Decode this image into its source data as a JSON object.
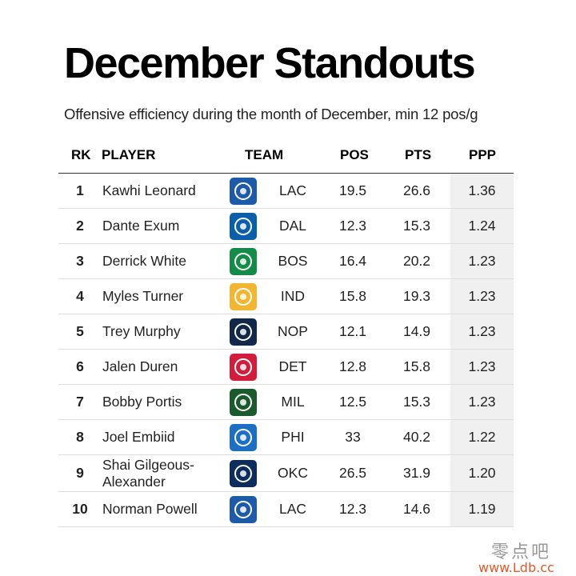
{
  "title": "December Standouts",
  "subtitle": "Offensive efficiency during the month of December, min 12 pos/g",
  "columns": {
    "rk": "RK",
    "player": "PLAYER",
    "team": "TEAM",
    "pos": "POS",
    "pts": "PTS",
    "ppp": "PPP"
  },
  "rows": [
    {
      "rk": "1",
      "player": "Kawhi Leonard",
      "team": "LAC",
      "pos": "19.5",
      "pts": "26.6",
      "ppp": "1.36",
      "logo_icon": "clippers-logo-icon",
      "logo_color": "#1d5aa8"
    },
    {
      "rk": "2",
      "player": "Dante Exum",
      "team": "DAL",
      "pos": "12.3",
      "pts": "15.3",
      "ppp": "1.24",
      "logo_icon": "mavericks-logo-icon",
      "logo_color": "#0b5ea8"
    },
    {
      "rk": "3",
      "player": "Derrick White",
      "team": "BOS",
      "pos": "16.4",
      "pts": "20.2",
      "ppp": "1.23",
      "logo_icon": "celtics-logo-icon",
      "logo_color": "#148b46"
    },
    {
      "rk": "4",
      "player": "Myles Turner",
      "team": "IND",
      "pos": "15.8",
      "pts": "19.3",
      "ppp": "1.23",
      "logo_icon": "pacers-logo-icon",
      "logo_color": "#f2b632"
    },
    {
      "rk": "5",
      "player": "Trey Murphy",
      "team": "NOP",
      "pos": "12.1",
      "pts": "14.9",
      "ppp": "1.23",
      "logo_icon": "pelicans-logo-icon",
      "logo_color": "#12284b"
    },
    {
      "rk": "6",
      "player": "Jalen Duren",
      "team": "DET",
      "pos": "12.8",
      "pts": "15.8",
      "ppp": "1.23",
      "logo_icon": "pistons-logo-icon",
      "logo_color": "#d21e3c"
    },
    {
      "rk": "7",
      "player": "Bobby Portis",
      "team": "MIL",
      "pos": "12.5",
      "pts": "15.3",
      "ppp": "1.23",
      "logo_icon": "bucks-logo-icon",
      "logo_color": "#1b5a2c"
    },
    {
      "rk": "8",
      "player": "Joel Embiid",
      "team": "PHI",
      "pos": "33",
      "pts": "40.2",
      "ppp": "1.22",
      "logo_icon": "76ers-logo-icon",
      "logo_color": "#1d6fc4"
    },
    {
      "rk": "9",
      "player": "Shai Gilgeous-Alexander",
      "team": "OKC",
      "pos": "26.5",
      "pts": "31.9",
      "ppp": "1.20",
      "logo_icon": "thunder-logo-icon",
      "logo_color": "#0d2d5e"
    },
    {
      "rk": "10",
      "player": "Norman Powell",
      "team": "LAC",
      "pos": "12.3",
      "pts": "14.6",
      "ppp": "1.19",
      "logo_icon": "clippers-logo-icon",
      "logo_color": "#1d5aa8"
    }
  ],
  "watermark": {
    "line1": "零点吧",
    "line2": "www.Ldb.cc"
  }
}
